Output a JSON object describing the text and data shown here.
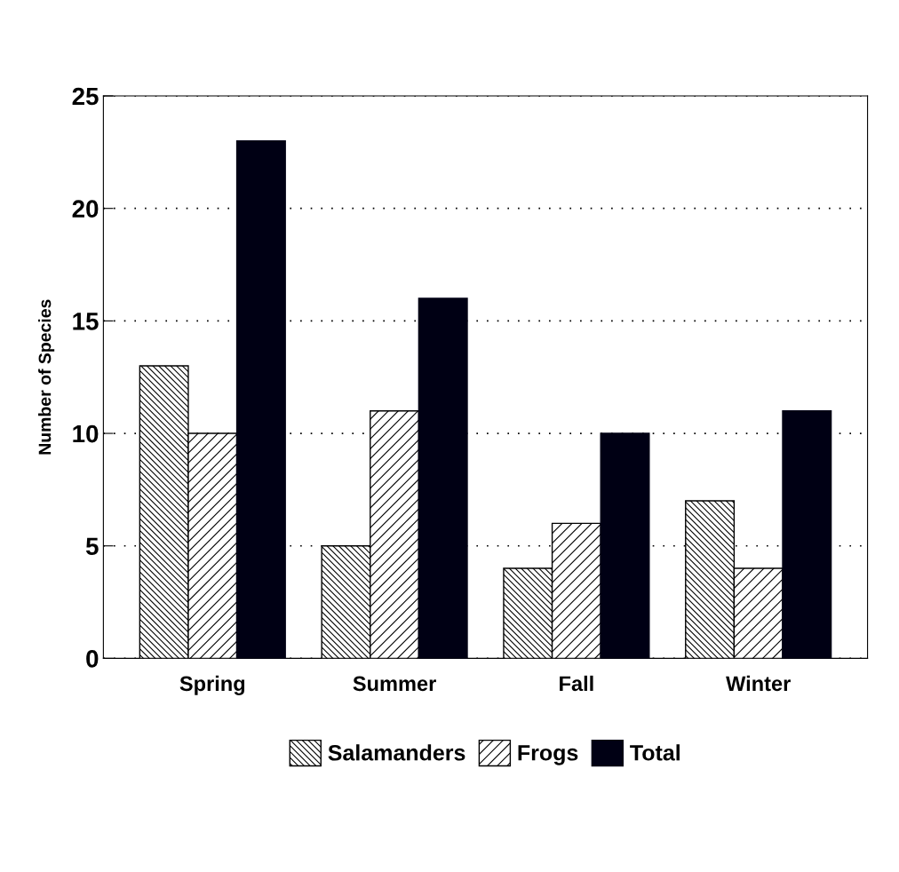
{
  "chart_data": {
    "type": "bar",
    "ylabel": "Number of Species",
    "categories": [
      "Spring",
      "Summer",
      "Fall",
      "Winter"
    ],
    "series": [
      {
        "name": "Salamanders",
        "color": "#000000",
        "values": [
          13,
          5,
          4,
          7
        ]
      },
      {
        "name": "Frogs",
        "color": "#000000",
        "values": [
          10,
          11,
          6,
          4
        ]
      },
      {
        "name": "Total",
        "color": "#000014",
        "values": [
          23,
          16,
          10,
          11
        ]
      }
    ],
    "ylim": [
      0,
      25
    ],
    "yticks": [
      0,
      5,
      10,
      15,
      20,
      25
    ],
    "grid": "y",
    "legend": "bottom"
  }
}
